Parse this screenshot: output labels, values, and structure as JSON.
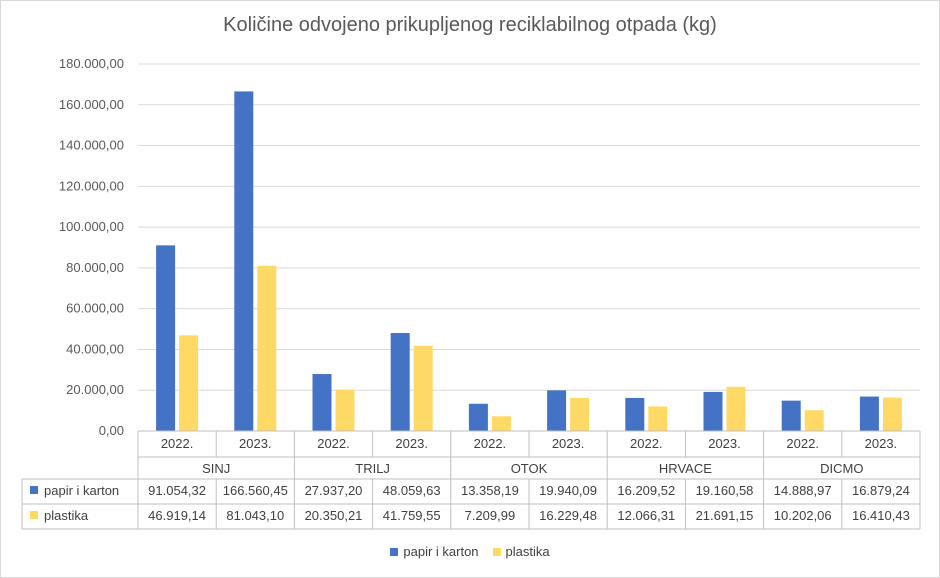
{
  "chart_data": {
    "type": "bar",
    "title": "Količine odvojeno prikupljenog reciklabilnog otpada (kg)",
    "ylim": [
      0,
      180000
    ],
    "ytick_step": 20000,
    "ytick_labels": [
      "0,00",
      "20.000,00",
      "40.000,00",
      "60.000,00",
      "80.000,00",
      "100.000,00",
      "120.000,00",
      "140.000,00",
      "160.000,00",
      "180.000,00"
    ],
    "groups": [
      "SINJ",
      "TRILJ",
      "OTOK",
      "HRVACE",
      "DICMO"
    ],
    "years": [
      "2022.",
      "2023."
    ],
    "categories": [
      "SINJ 2022.",
      "SINJ 2023.",
      "TRILJ 2022.",
      "TRILJ 2023.",
      "OTOK 2022.",
      "OTOK 2023.",
      "HRVACE 2022.",
      "HRVACE 2023.",
      "DICMO 2022.",
      "DICMO 2023."
    ],
    "series": [
      {
        "name": "papir i karton",
        "color": "#4472c4",
        "values": [
          91054.32,
          166560.45,
          27937.2,
          48059.63,
          13358.19,
          19940.09,
          16209.52,
          19160.58,
          14888.97,
          16879.24
        ],
        "labels": [
          "91.054,32",
          "166.560,45",
          "27.937,20",
          "48.059,63",
          "13.358,19",
          "19.940,09",
          "16.209,52",
          "19.160,58",
          "14.888,97",
          "16.879,24"
        ]
      },
      {
        "name": "plastika",
        "color": "#ffd966",
        "values": [
          46919.14,
          81043.1,
          20350.21,
          41759.55,
          7209.99,
          16229.48,
          12066.31,
          21691.15,
          10202.06,
          16410.43
        ],
        "labels": [
          "46.919,14",
          "81.043,10",
          "20.350,21",
          "41.759,55",
          "7.209,99",
          "16.229,48",
          "12.066,31",
          "21.691,15",
          "10.202,06",
          "16.410,43"
        ]
      }
    ],
    "legend_position": "bottom",
    "grid": true,
    "data_table": true
  }
}
